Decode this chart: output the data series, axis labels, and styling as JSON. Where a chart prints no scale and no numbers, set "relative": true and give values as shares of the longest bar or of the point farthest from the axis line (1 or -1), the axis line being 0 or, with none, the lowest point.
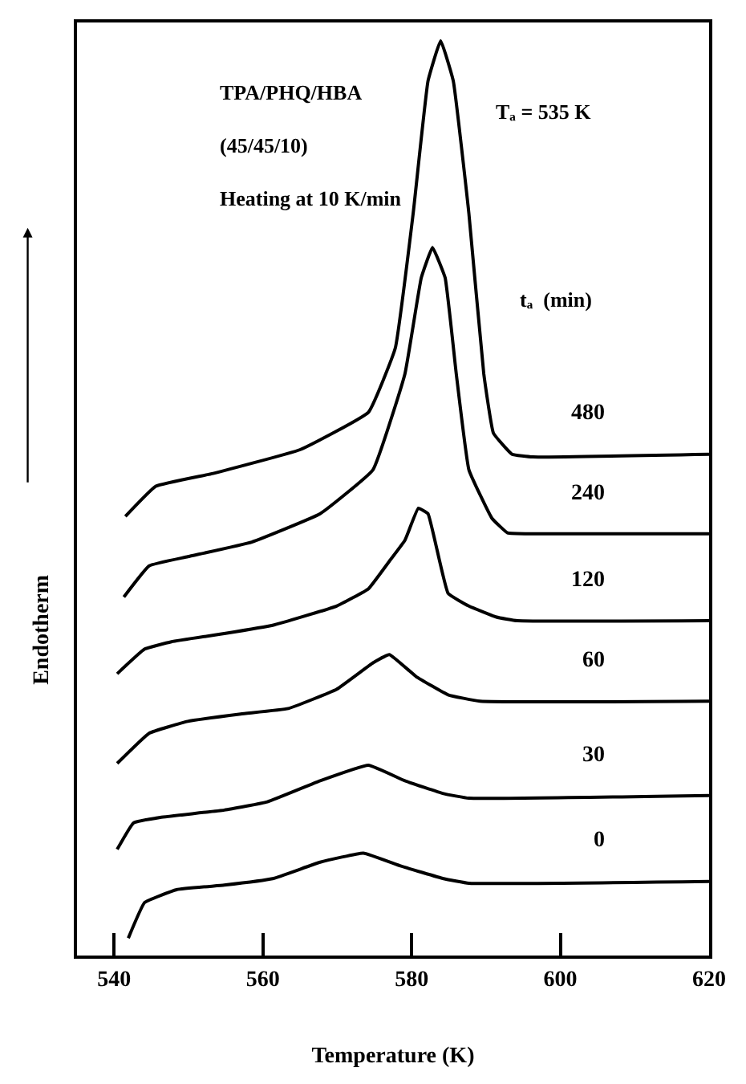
{
  "chart_data": {
    "type": "line",
    "relative": true,
    "xlabel": "Temperature (K)",
    "ylabel": "Endotherm",
    "xlim": [
      535,
      620
    ],
    "xticks": [
      540,
      560,
      580,
      600,
      620
    ],
    "legend": false,
    "marker": "none",
    "line_style": "solid",
    "annotations": [
      "TPA/PHQ/HBA",
      "(45/45/10)",
      "Heating at 10 K/min",
      "Tₐ = 535 K",
      "tₐ  (min)"
    ],
    "series": [
      {
        "name": "480",
        "color": "#000000",
        "x": [
          541.5,
          545.6,
          553.3,
          565.0,
          574.2,
          577.8,
          580.2,
          582.2,
          583.9,
          585.6,
          587.7,
          589.7,
          591.0,
          593.5,
          596.3,
          620
        ],
        "values": [
          0.48,
          0.513,
          0.527,
          0.553,
          0.594,
          0.664,
          0.811,
          0.956,
          1.0,
          0.956,
          0.811,
          0.636,
          0.571,
          0.548,
          0.545,
          0.548
        ]
      },
      {
        "name": "240",
        "color": "#000000",
        "x": [
          541.3,
          544.7,
          549.9,
          558.5,
          567.7,
          574.8,
          579.1,
          581.3,
          582.8,
          584.5,
          586.0,
          587.7,
          590.8,
          592.9,
          596.3,
          620
        ],
        "values": [
          0.392,
          0.426,
          0.436,
          0.452,
          0.483,
          0.531,
          0.636,
          0.741,
          0.774,
          0.741,
          0.636,
          0.531,
          0.478,
          0.462,
          0.461,
          0.461
        ]
      },
      {
        "name": "120",
        "color": "#000000",
        "x": [
          540.4,
          544.1,
          547.7,
          554.8,
          561.3,
          569.9,
          574.2,
          577.0,
          579.1,
          580.9,
          582.2,
          584.9,
          587.7,
          591.4,
          594.2,
          620
        ],
        "values": [
          0.308,
          0.335,
          0.343,
          0.352,
          0.361,
          0.382,
          0.401,
          0.431,
          0.454,
          0.489,
          0.483,
          0.396,
          0.382,
          0.37,
          0.366,
          0.366
        ]
      },
      {
        "name": "60",
        "color": "#000000",
        "x": [
          540.4,
          544.7,
          549.9,
          557.0,
          563.4,
          569.9,
          574.8,
          577.0,
          580.6,
          584.9,
          589.2,
          620
        ],
        "values": [
          0.21,
          0.243,
          0.256,
          0.264,
          0.27,
          0.291,
          0.32,
          0.329,
          0.305,
          0.285,
          0.278,
          0.278
        ]
      },
      {
        "name": "30",
        "color": "#000000",
        "x": [
          540.4,
          542.6,
          546.2,
          554.8,
          560.6,
          567.7,
          574.2,
          579.1,
          584.3,
          587.7,
          620
        ],
        "values": [
          0.116,
          0.145,
          0.151,
          0.159,
          0.168,
          0.191,
          0.208,
          0.191,
          0.177,
          0.172,
          0.175
        ]
      },
      {
        "name": "0",
        "color": "#000000",
        "x": [
          541.9,
          544.1,
          548.4,
          554.8,
          561.3,
          567.7,
          573.5,
          578.5,
          584.3,
          587.7,
          620
        ],
        "values": [
          0.019,
          0.058,
          0.072,
          0.077,
          0.084,
          0.102,
          0.112,
          0.098,
          0.084,
          0.079,
          0.081
        ]
      }
    ]
  }
}
